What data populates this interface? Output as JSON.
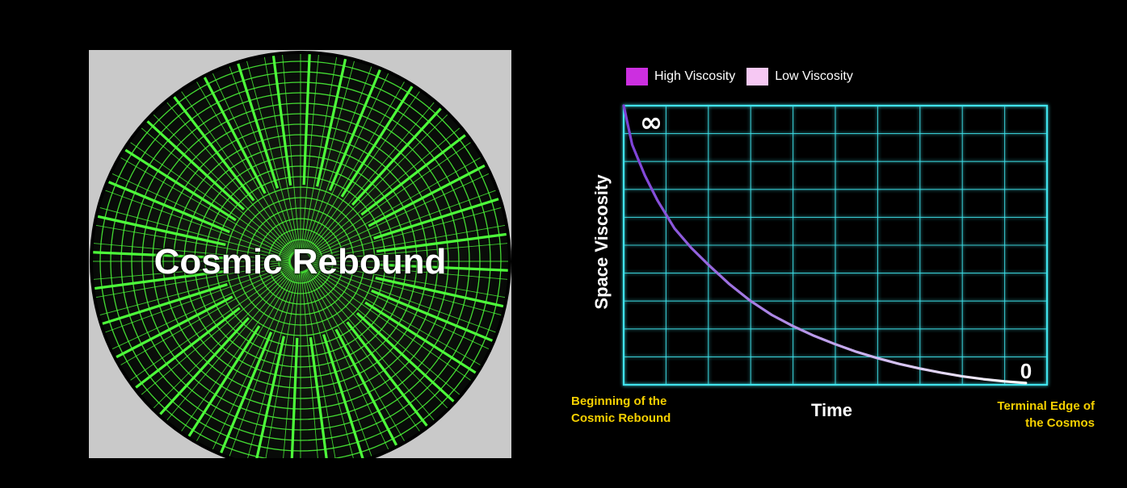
{
  "left_panel": {
    "title": "Cosmic Rebound",
    "grid_color": "#4dff3a",
    "backdrop_color": "#c9c9c9"
  },
  "legend": {
    "items": [
      {
        "label": "High Viscosity",
        "color": "#cc2fe0"
      },
      {
        "label": "Low Viscosity",
        "color": "#f6c8f3"
      }
    ]
  },
  "chart_data": {
    "type": "line",
    "title": "",
    "xlabel": "Time",
    "ylabel": "Space Viscosity",
    "x_start_label": "Beginning of the Cosmic Rebound",
    "x_end_label": "Terminal Edge of the Cosmos",
    "y_top_label": "∞",
    "y_bottom_label": "0",
    "grid": true,
    "grid_color": "#3fe3ec",
    "xlim": [
      0,
      100
    ],
    "ylim": [
      0,
      100
    ],
    "series": [
      {
        "x": [
          0,
          2,
          5,
          8,
          12,
          16,
          20,
          25,
          30,
          35,
          40,
          45,
          50,
          55,
          60,
          65,
          70,
          75,
          80,
          85,
          90,
          95
        ],
        "y": [
          100,
          86,
          75,
          66,
          56,
          49,
          43,
          36,
          30,
          25,
          21,
          17.5,
          14.5,
          11.8,
          9.5,
          7.5,
          5.8,
          4.3,
          3.0,
          2.0,
          1.2,
          0.6
        ],
        "color_start": "#7b3fd6",
        "color_end": "#ffffff"
      }
    ]
  }
}
